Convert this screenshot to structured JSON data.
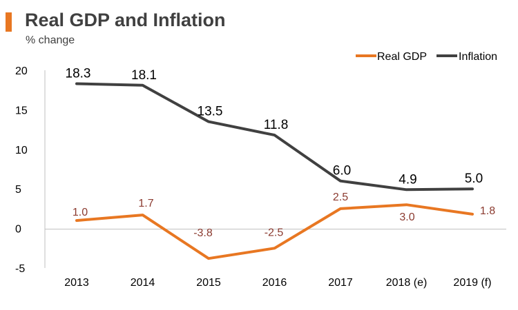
{
  "title": "Real GDP and Inflation",
  "subtitle": "% change",
  "colors": {
    "accent": "#E87722",
    "gdp_line": "#E87722",
    "inflation_line": "#404040",
    "gdp_label": "#8B3A2F",
    "axis": "#BFBFBF"
  },
  "chart_data": {
    "type": "line",
    "title": "Real GDP and Inflation",
    "subtitle": "% change",
    "xlabel": "",
    "ylabel": "% change",
    "categories": [
      "2013",
      "2014",
      "2015",
      "2016",
      "2017",
      "2018 (e)",
      "2019 (f)"
    ],
    "y_ticks": [
      "20",
      "15",
      "10",
      "5",
      "0",
      "-5"
    ],
    "ylim": [
      -5,
      20
    ],
    "grid": false,
    "legend_position": "top-right",
    "series": [
      {
        "name": "Real GDP",
        "values": [
          1.0,
          1.7,
          -3.8,
          -2.5,
          2.5,
          3.0,
          1.8
        ],
        "labels": [
          "1.0",
          "1.7",
          "-3.8",
          "-2.5",
          "2.5",
          "3.0",
          "1.8"
        ]
      },
      {
        "name": "Inflation",
        "values": [
          18.3,
          18.1,
          13.5,
          11.8,
          6.0,
          4.9,
          5.0
        ],
        "labels": [
          "18.3",
          "18.1",
          "13.5",
          "11.8",
          "6.0",
          "4.9",
          "5.0"
        ]
      }
    ]
  }
}
